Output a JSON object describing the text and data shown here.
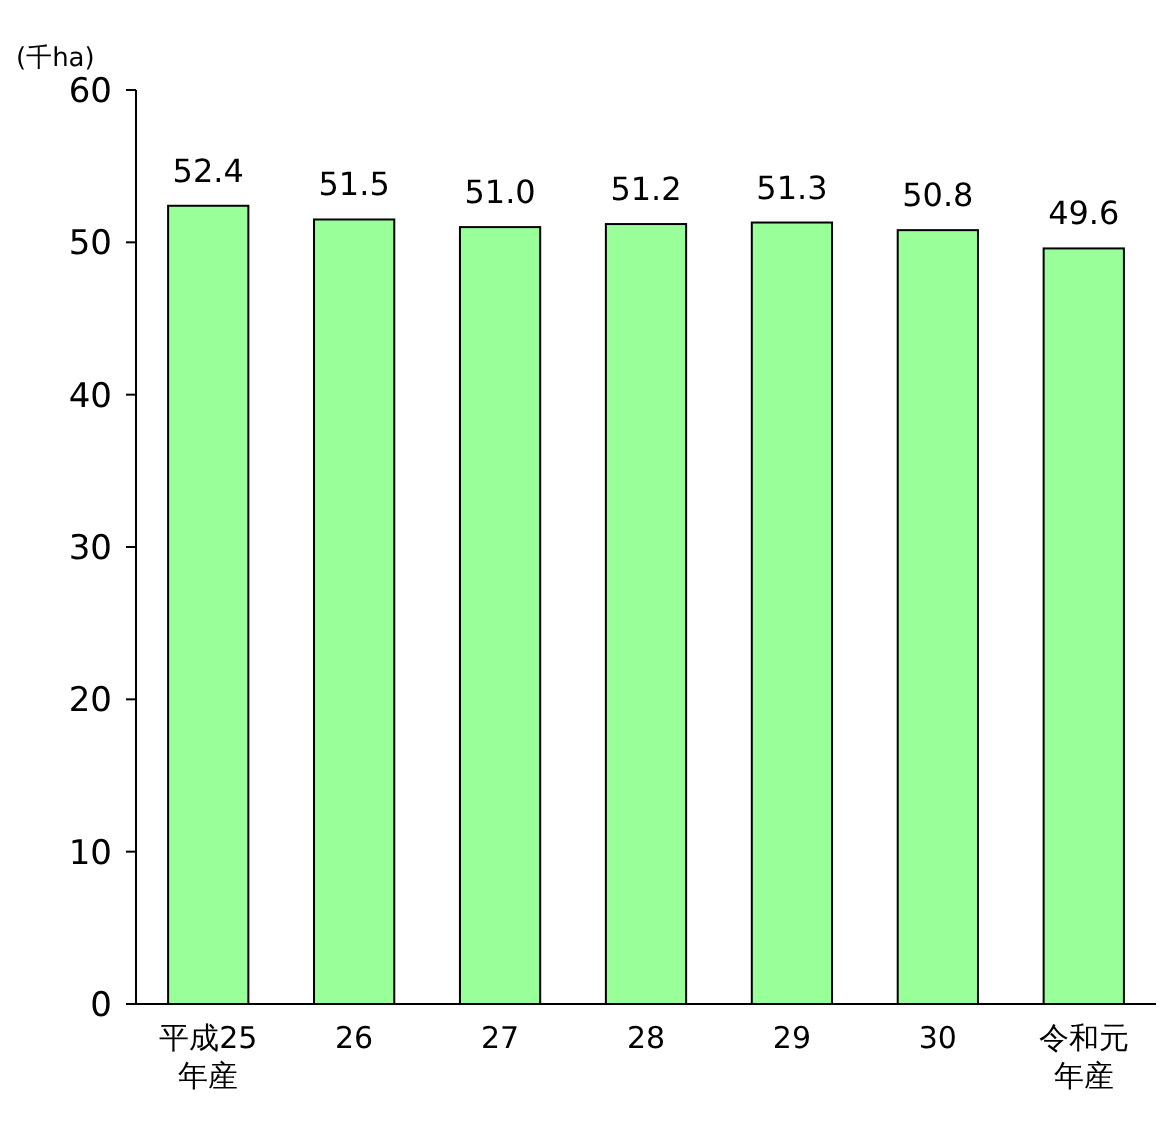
{
  "chart_data": {
    "type": "bar",
    "ylabel": "(千ha)",
    "categories": [
      "平成25年産",
      "26",
      "27",
      "28",
      "29",
      "30",
      "令和元年産"
    ],
    "values": [
      52.4,
      51.5,
      51.0,
      51.2,
      51.3,
      50.8,
      49.6
    ],
    "value_labels": [
      "52.4",
      "51.5",
      "51.0",
      "51.2",
      "51.3",
      "50.8",
      "49.6"
    ],
    "color": "#99ff99",
    "ylim": [
      0,
      60
    ],
    "yticks": [
      0,
      10,
      20,
      30,
      40,
      50,
      60
    ],
    "grid": false
  }
}
